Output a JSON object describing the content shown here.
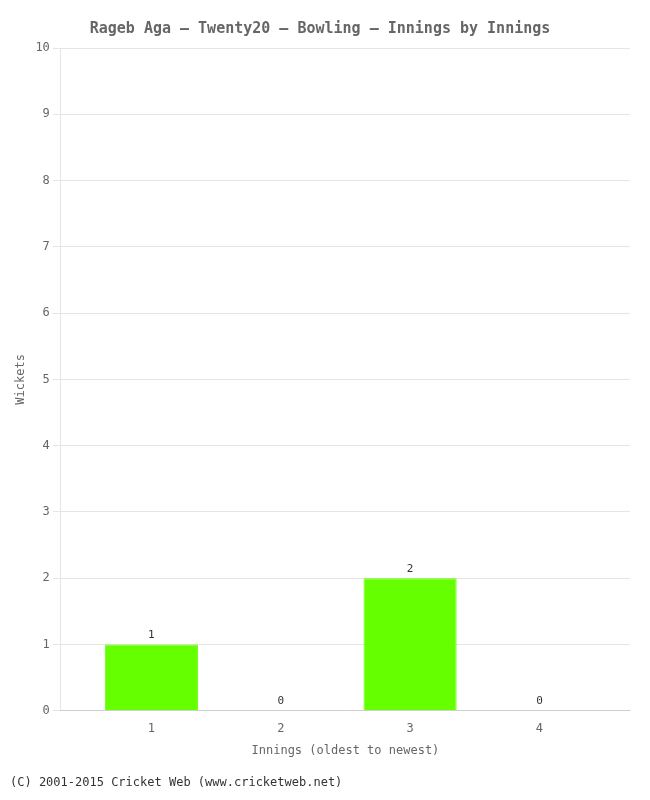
{
  "chart_data": {
    "type": "bar",
    "title": "Rageb Aga – Twenty20 – Bowling – Innings by Innings",
    "xlabel": "Innings (oldest to newest)",
    "ylabel": "Wickets",
    "x": [
      1,
      2,
      3,
      4
    ],
    "values": [
      1,
      0,
      2,
      0
    ],
    "color": "#66ff00",
    "xlim": [
      0.3,
      4.7
    ],
    "xticks": [
      1,
      2,
      3,
      4
    ],
    "ylim": [
      0,
      10
    ],
    "yticks": [
      0,
      1,
      2,
      3,
      4,
      5,
      6,
      7,
      8,
      9,
      10
    ],
    "grid": true,
    "data_labels": true,
    "annotations": [
      "(C) 2001-2015 Cricket Web (www.cricketweb.net)"
    ]
  }
}
